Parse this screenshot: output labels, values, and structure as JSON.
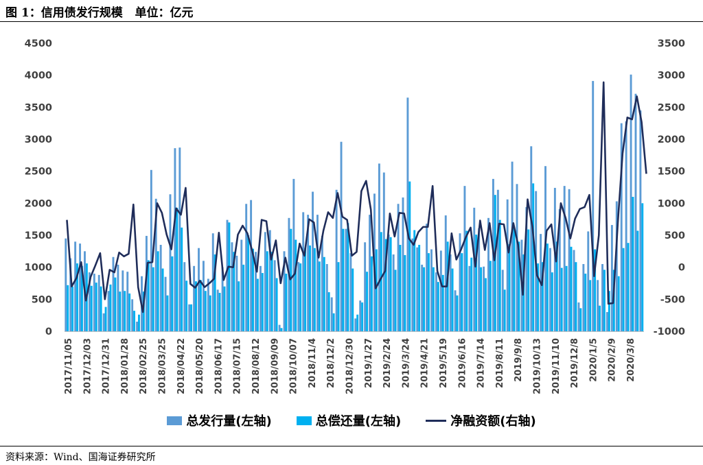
{
  "header": {
    "title": "图 1：信用债发行规模   单位：亿元"
  },
  "footer": {
    "source": "资料来源：Wind、国海证券研究所"
  },
  "colors": {
    "issuance": "#5B9BD5",
    "repayment": "#00B0F0",
    "net": "#1F2D5A"
  },
  "chart_data": {
    "type": "bar+line",
    "left_axis": {
      "min": 0,
      "max": 4500,
      "step": 500
    },
    "right_axis": {
      "min": -1000,
      "max": 3500,
      "step": 500
    },
    "x_tick_labels": [
      "2017/11/05",
      "2017/12/03",
      "2017/12/31",
      "2018/01/28",
      "2018/02/25",
      "2018/03/25",
      "2018/04/22",
      "2018/05/20",
      "2018/06/17",
      "2018/07/15",
      "2018/08/12",
      "2018/09/09",
      "2018/10/07",
      "2018/11/4",
      "2018/12/2",
      "2018/12/30",
      "2019/1/27",
      "2019/2/24",
      "2019/3/24",
      "2019/4/21",
      "2019/5/19",
      "2019/6/16",
      "2019/7/14",
      "2019/8/11",
      "2019/9/8",
      "2019/10/13",
      "2019/11/10",
      "2019/12/8",
      "2020/1/5",
      "2020/2/9",
      "2020/3/8"
    ],
    "legend": [
      "总发行量(左轴)",
      "总偿还量(左轴)",
      "净融资额(右轴)"
    ],
    "series": [
      {
        "name": "总发行量(左轴)",
        "axis": "left",
        "values": [
          1450,
          1140,
          1400,
          1370,
          1250,
          920,
          900,
          880,
          280,
          630,
          1160,
          1040,
          950,
          930,
          500,
          150,
          860,
          1490,
          2520,
          2070,
          1350,
          850,
          2140,
          2860,
          2870,
          1080,
          420,
          1020,
          1300,
          1100,
          820,
          1530,
          650,
          1000,
          1740,
          1390,
          1180,
          1430,
          1990,
          2050,
          1240,
          1020,
          1550,
          1580,
          1110,
          100,
          1250,
          1770,
          2380,
          1080,
          1860,
          1820,
          2180,
          1820,
          1490,
          1050,
          530,
          2210,
          2960,
          1600,
          1220,
          200,
          480,
          1390,
          1820,
          2150,
          2620,
          2480,
          1510,
          1200,
          1990,
          2090,
          3650,
          1450,
          1310,
          1040,
          1680,
          1280,
          920,
          1260,
          1810,
          1200,
          640,
          1530,
          2270,
          1020,
          1930,
          1610,
          1010,
          1770,
          2380,
          2210,
          960,
          2060,
          2650,
          2300,
          1430,
          1940,
          2890,
          2190,
          1520,
          2580,
          1300,
          2240,
          1910,
          2270,
          2220,
          1270,
          450,
          1050,
          1560,
          3910,
          800,
          1050,
          300,
          1660,
          2030,
          3250,
          3280,
          4010,
          3710,
          3450
        ]
      },
      {
        "name": "总偿还量(左轴)",
        "axis": "left",
        "values": [
          720,
          700,
          1060,
          1020,
          1060,
          710,
          760,
          700,
          380,
          730,
          840,
          620,
          630,
          590,
          320,
          260,
          620,
          1110,
          1000,
          1250,
          980,
          560,
          1170,
          1930,
          1620,
          790,
          420,
          780,
          800,
          630,
          560,
          1200,
          600,
          700,
          1700,
          1240,
          780,
          1040,
          1500,
          1290,
          820,
          910,
          1250,
          1240,
          830,
          50,
          900,
          1600,
          1430,
          1060,
          1300,
          1340,
          1300,
          1090,
          1160,
          610,
          280,
          1080,
          1600,
          1690,
          980,
          260,
          450,
          930,
          1170,
          1280,
          1550,
          1440,
          1470,
          960,
          1350,
          1190,
          2340,
          1580,
          1350,
          1000,
          1220,
          1000,
          770,
          880,
          1400,
          980,
          560,
          1220,
          1570,
          1150,
          1510,
          1000,
          830,
          1100,
          2130,
          1740,
          650,
          1360,
          1620,
          1400,
          1200,
          1590,
          2310,
          1060,
          1080,
          1370,
          920,
          1400,
          990,
          1020,
          1320,
          1080,
          360,
          900,
          800,
          1280,
          400,
          960,
          630,
          960,
          860,
          1300,
          1380,
          2100,
          1570,
          2000
        ]
      },
      {
        "name": "净融资额(右轴)",
        "axis": "right",
        "values": [
          740,
          -300,
          -170,
          80,
          -520,
          -150,
          30,
          220,
          -500,
          -40,
          -80,
          230,
          170,
          210,
          980,
          -310,
          -700,
          70,
          80,
          1000,
          850,
          510,
          280,
          920,
          820,
          1240,
          -260,
          -320,
          -210,
          -310,
          -250,
          -180,
          540,
          -200,
          10,
          0,
          510,
          650,
          530,
          260,
          -70,
          740,
          720,
          120,
          420,
          -250,
          150,
          -190,
          -100,
          370,
          180,
          750,
          700,
          150,
          570,
          860,
          770,
          1160,
          790,
          740,
          180,
          240,
          1190,
          1350,
          900,
          -330,
          -190,
          -60,
          840,
          480,
          850,
          840,
          450,
          350,
          550,
          630,
          630,
          1270,
          -60,
          -300,
          -300,
          530,
          120,
          280,
          470,
          620,
          10,
          730,
          270,
          690,
          110,
          680,
          670,
          230,
          690,
          350,
          -430,
          1060,
          640,
          -130,
          -280,
          570,
          670,
          90,
          1000,
          770,
          450,
          760,
          910,
          940,
          1130,
          -140,
          500,
          2890,
          -570,
          -560,
          700,
          1780,
          2340,
          2310,
          2670,
          2270,
          1460
        ]
      }
    ]
  }
}
